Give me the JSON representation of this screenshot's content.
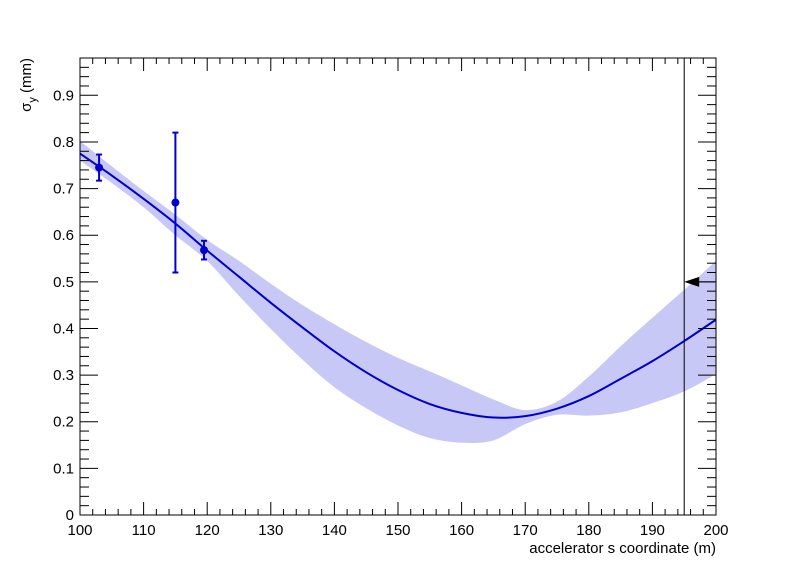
{
  "chart_data": {
    "type": "line",
    "title": "",
    "xlabel": "accelerator s coordinate (m)",
    "ylabel": "σ",
    "ylabel_sub": "y",
    "ylabel_unit": " (mm)",
    "xlim": [
      100,
      200
    ],
    "ylim": [
      0,
      0.98
    ],
    "grid": false,
    "legend": "none",
    "x_ticks": [
      100,
      110,
      120,
      130,
      140,
      150,
      160,
      170,
      180,
      190,
      200
    ],
    "y_ticks": [
      0,
      0.1,
      0.2,
      0.3,
      0.4,
      0.5,
      0.6,
      0.7,
      0.8,
      0.9
    ],
    "x_tick_labels": [
      "100",
      "110",
      "120",
      "130",
      "140",
      "150",
      "160",
      "170",
      "180",
      "190",
      "200"
    ],
    "y_tick_labels": [
      "0",
      "0.1",
      "0.2",
      "0.3",
      "0.4",
      "0.5",
      "0.6",
      "0.7",
      "0.8",
      "0.9"
    ],
    "colors": {
      "fit": "#0000cc",
      "band": "#c8c8f7",
      "points": "#0000cc",
      "marker": "#000000"
    },
    "fit_curve": {
      "x": [
        100,
        105,
        110,
        115,
        120,
        125,
        130,
        135,
        140,
        145,
        150,
        155,
        160,
        165,
        170,
        175,
        180,
        185,
        190,
        195,
        200
      ],
      "y": [
        0.775,
        0.728,
        0.678,
        0.625,
        0.567,
        0.511,
        0.455,
        0.402,
        0.351,
        0.306,
        0.268,
        0.238,
        0.219,
        0.209,
        0.212,
        0.228,
        0.255,
        0.292,
        0.33,
        0.373,
        0.419
      ]
    },
    "band": {
      "x": [
        100,
        105,
        110,
        115,
        120,
        125,
        130,
        135,
        140,
        145,
        150,
        155,
        160,
        165,
        170,
        175,
        180,
        185,
        190,
        195,
        200
      ],
      "lower": [
        0.76,
        0.712,
        0.66,
        0.6,
        0.545,
        0.47,
        0.399,
        0.333,
        0.274,
        0.229,
        0.192,
        0.165,
        0.155,
        0.16,
        0.195,
        0.215,
        0.213,
        0.22,
        0.24,
        0.265,
        0.302
      ],
      "upper": [
        0.802,
        0.748,
        0.695,
        0.644,
        0.59,
        0.545,
        0.496,
        0.45,
        0.409,
        0.371,
        0.337,
        0.308,
        0.278,
        0.248,
        0.225,
        0.243,
        0.297,
        0.362,
        0.423,
        0.483,
        0.545
      ]
    },
    "points": [
      {
        "x": 103.0,
        "y": 0.745,
        "yerr": 0.028
      },
      {
        "x": 115.0,
        "y": 0.67,
        "yerr": 0.15
      },
      {
        "x": 119.5,
        "y": 0.568,
        "yerr": 0.02
      }
    ],
    "vertical_line_x": 195,
    "arrow": {
      "x_from": 200,
      "x_to": 195,
      "y": 0.5
    }
  }
}
